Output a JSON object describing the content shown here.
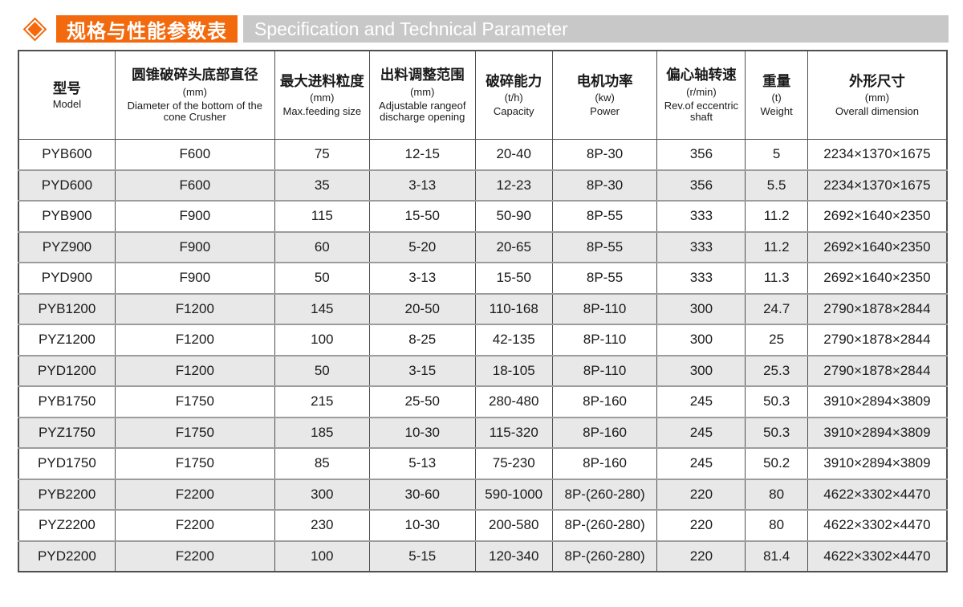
{
  "header": {
    "title_cn": "规格与性能参数表",
    "title_en": "Specification and Technical Parameter"
  },
  "colors": {
    "accent_orange": "#f2690e",
    "bar_gray": "#c8c8c8",
    "row_stripe_gray": "#e8e8e8",
    "border_dark": "#4f4f4f",
    "row_line_gray": "#9c9c9c"
  },
  "table": {
    "columns": [
      {
        "cn": "型号",
        "unit": "",
        "en": "Model"
      },
      {
        "cn": "圆锥破碎头底部直径",
        "unit": "(mm)",
        "en": "Diameter of the bottom of the cone Crusher"
      },
      {
        "cn": "最大进料粒度",
        "unit": "(mm)",
        "en": "Max.feeding size"
      },
      {
        "cn": "出料调整范围",
        "unit": "(mm)",
        "en": "Adjustable rangeof discharge opening"
      },
      {
        "cn": "破碎能力",
        "unit": "(t/h)",
        "en": "Capacity"
      },
      {
        "cn": "电机功率",
        "unit": "(kw)",
        "en": "Power"
      },
      {
        "cn": "偏心轴转速",
        "unit": "(r/min)",
        "en": "Rev.of eccentric shaft"
      },
      {
        "cn": "重量",
        "unit": "(t)",
        "en": "Weight"
      },
      {
        "cn": "外形尺寸",
        "unit": "(mm)",
        "en": "Overall dimension"
      }
    ],
    "rows": [
      [
        "PYB600",
        "F600",
        "75",
        "12-15",
        "20-40",
        "8P-30",
        "356",
        "5",
        "2234×1370×1675"
      ],
      [
        "PYD600",
        "F600",
        "35",
        "3-13",
        "12-23",
        "8P-30",
        "356",
        "5.5",
        "2234×1370×1675"
      ],
      [
        "PYB900",
        "F900",
        "115",
        "15-50",
        "50-90",
        "8P-55",
        "333",
        "11.2",
        "2692×1640×2350"
      ],
      [
        "PYZ900",
        "F900",
        "60",
        "5-20",
        "20-65",
        "8P-55",
        "333",
        "11.2",
        "2692×1640×2350"
      ],
      [
        "PYD900",
        "F900",
        "50",
        "3-13",
        "15-50",
        "8P-55",
        "333",
        "11.3",
        "2692×1640×2350"
      ],
      [
        "PYB1200",
        "F1200",
        "145",
        "20-50",
        "110-168",
        "8P-110",
        "300",
        "24.7",
        "2790×1878×2844"
      ],
      [
        "PYZ1200",
        "F1200",
        "100",
        "8-25",
        "42-135",
        "8P-110",
        "300",
        "25",
        "2790×1878×2844"
      ],
      [
        "PYD1200",
        "F1200",
        "50",
        "3-15",
        "18-105",
        "8P-110",
        "300",
        "25.3",
        "2790×1878×2844"
      ],
      [
        "PYB1750",
        "F1750",
        "215",
        "25-50",
        "280-480",
        "8P-160",
        "245",
        "50.3",
        "3910×2894×3809"
      ],
      [
        "PYZ1750",
        "F1750",
        "185",
        "10-30",
        "115-320",
        "8P-160",
        "245",
        "50.3",
        "3910×2894×3809"
      ],
      [
        "PYD1750",
        "F1750",
        "85",
        "5-13",
        "75-230",
        "8P-160",
        "245",
        "50.2",
        "3910×2894×3809"
      ],
      [
        "PYB2200",
        "F2200",
        "300",
        "30-60",
        "590-1000",
        "8P-(260-280)",
        "220",
        "80",
        "4622×3302×4470"
      ],
      [
        "PYZ2200",
        "F2200",
        "230",
        "10-30",
        "200-580",
        "8P-(260-280)",
        "220",
        "80",
        "4622×3302×4470"
      ],
      [
        "PYD2200",
        "F2200",
        "100",
        "5-15",
        "120-340",
        "8P-(260-280)",
        "220",
        "81.4",
        "4622×3302×4470"
      ]
    ]
  }
}
